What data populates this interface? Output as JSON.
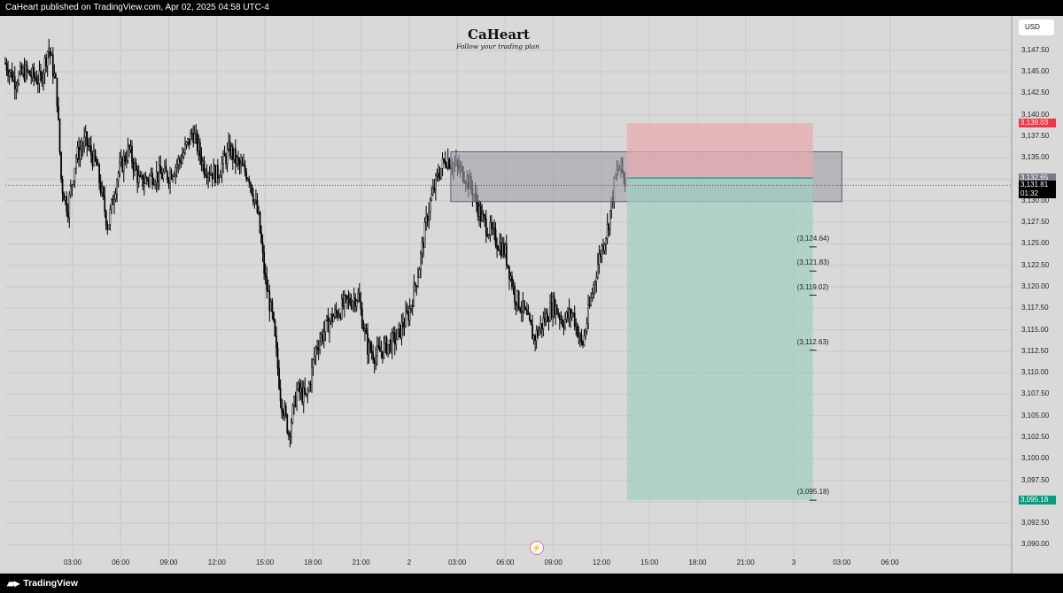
{
  "header": {
    "publisher_text": "CaHeart published on TradingView.com, Apr 02, 2025 04:58 UTC-4"
  },
  "footer": {
    "brand": "TradingView",
    "brand_icon": "tradingview-logo-icon"
  },
  "logo": {
    "title": "CaHeart",
    "subtitle": "Follow your trading plan",
    "icon": "heart-icon"
  },
  "currency_button": "USD",
  "icons": {
    "alert": "lightning-icon"
  },
  "colors": {
    "background": "#d9d9d9",
    "candle": "#000000",
    "stop_zone": "#e8a9ad",
    "target_zone": "#9fcfc1",
    "gray_zone": "#9e9ea8",
    "entry_line": "#26a69a",
    "stop_tag": "#f23645",
    "target_tag": "#089981"
  },
  "chart_data": {
    "type": "candlestick",
    "ylim": [
      3088.5,
      3151.5
    ],
    "price_axis_ticks": [
      "3,147.50",
      "3,145.00",
      "3,142.50",
      "3,140.00",
      "3,137.50",
      "3,135.00",
      "3,132.50",
      "3,130.00",
      "3,127.50",
      "3,125.00",
      "3,122.50",
      "3,120.00",
      "3,117.50",
      "3,115.00",
      "3,112.50",
      "3,110.00",
      "3,107.50",
      "3,105.00",
      "3,102.50",
      "3,100.00",
      "3,097.50",
      "3,095.00",
      "3,092.50",
      "3,090.00"
    ],
    "time_axis_ticks": [
      "03:00",
      "06:00",
      "09:00",
      "12:00",
      "15:00",
      "18:00",
      "21:00",
      "2",
      "03:00",
      "06:00",
      "09:00",
      "12:00",
      "15:00",
      "18:00",
      "21:00",
      "3",
      "03:00",
      "06:00"
    ],
    "x_start_hours": -4.2,
    "x_end_hours": 58.6,
    "price_path": [
      [
        -4.2,
        3146
      ],
      [
        -3.6,
        3144
      ],
      [
        -3.0,
        3145
      ],
      [
        -2.0,
        3144
      ],
      [
        -1.5,
        3148
      ],
      [
        -1.0,
        3143
      ],
      [
        -0.7,
        3132
      ],
      [
        -0.3,
        3129
      ],
      [
        0.2,
        3135
      ],
      [
        0.8,
        3137
      ],
      [
        1.5,
        3134
      ],
      [
        2.2,
        3127
      ],
      [
        2.8,
        3133
      ],
      [
        3.5,
        3136
      ],
      [
        4.2,
        3132
      ],
      [
        5.0,
        3133
      ],
      [
        6.0,
        3133
      ],
      [
        6.8,
        3135
      ],
      [
        7.5,
        3138
      ],
      [
        8.2,
        3134
      ],
      [
        9.0,
        3133
      ],
      [
        9.8,
        3136
      ],
      [
        10.4,
        3134
      ],
      [
        11.0,
        3133
      ],
      [
        11.6,
        3128
      ],
      [
        12.0,
        3121
      ],
      [
        12.5,
        3116
      ],
      [
        13.0,
        3107
      ],
      [
        13.5,
        3103
      ],
      [
        14.0,
        3108
      ],
      [
        14.6,
        3107
      ],
      [
        15.2,
        3113
      ],
      [
        16.0,
        3116
      ],
      [
        17.0,
        3118
      ],
      [
        17.8,
        3119
      ],
      [
        18.4,
        3113
      ],
      [
        18.9,
        3112
      ],
      [
        19.5,
        3113
      ],
      [
        20.2,
        3114
      ],
      [
        21.0,
        3117
      ],
      [
        21.6,
        3122
      ],
      [
        22.2,
        3129
      ],
      [
        22.8,
        3133
      ],
      [
        23.3,
        3135
      ],
      [
        23.9,
        3134
      ],
      [
        24.5,
        3133
      ],
      [
        25.0,
        3131
      ],
      [
        25.5,
        3128
      ],
      [
        26.2,
        3126
      ],
      [
        27.0,
        3124
      ],
      [
        27.6,
        3119
      ],
      [
        28.2,
        3117
      ],
      [
        28.8,
        3114
      ],
      [
        29.4,
        3116
      ],
      [
        30.0,
        3118
      ],
      [
        30.6,
        3116
      ],
      [
        31.2,
        3117
      ],
      [
        31.8,
        3113
      ],
      [
        32.3,
        3118
      ],
      [
        32.8,
        3123
      ],
      [
        33.4,
        3127
      ],
      [
        33.9,
        3133
      ],
      [
        34.2,
        3134
      ],
      [
        34.5,
        3132
      ]
    ],
    "position": {
      "side": "short",
      "start_hours": 34.6,
      "end_hours": 46.2,
      "entry": 3132.65,
      "stop": 3139.03,
      "target": 3095.18
    },
    "zone": {
      "start_hours": 23.6,
      "end_hours": 48.0,
      "top": 3135.7,
      "bottom": 3129.9
    },
    "current_price_line": 3131.81,
    "level_markers": [
      {
        "label": "(3,124.64)",
        "price": 3124.64
      },
      {
        "label": "(3,121.83)",
        "price": 3121.83
      },
      {
        "label": "(3,119.02)",
        "price": 3119.02
      },
      {
        "label": "(3,112.63)",
        "price": 3112.63
      },
      {
        "label": "(3,095.18)",
        "price": 3095.18
      }
    ],
    "tags": [
      {
        "text": "3,139.03",
        "price": 3139.03,
        "color": "#f23645",
        "text_color": "#ffffff"
      },
      {
        "text": "3,132.65",
        "price": 3132.65,
        "color": "#787b86",
        "text_color": "#ffffff"
      },
      {
        "text": "3,131.81",
        "sub": "01:32",
        "price": 3131.81,
        "color": "#000000",
        "text_color": "#ffffff"
      },
      {
        "text": "3,095.18",
        "price": 3095.18,
        "color": "#089981",
        "text_color": "#ffffff"
      }
    ]
  }
}
